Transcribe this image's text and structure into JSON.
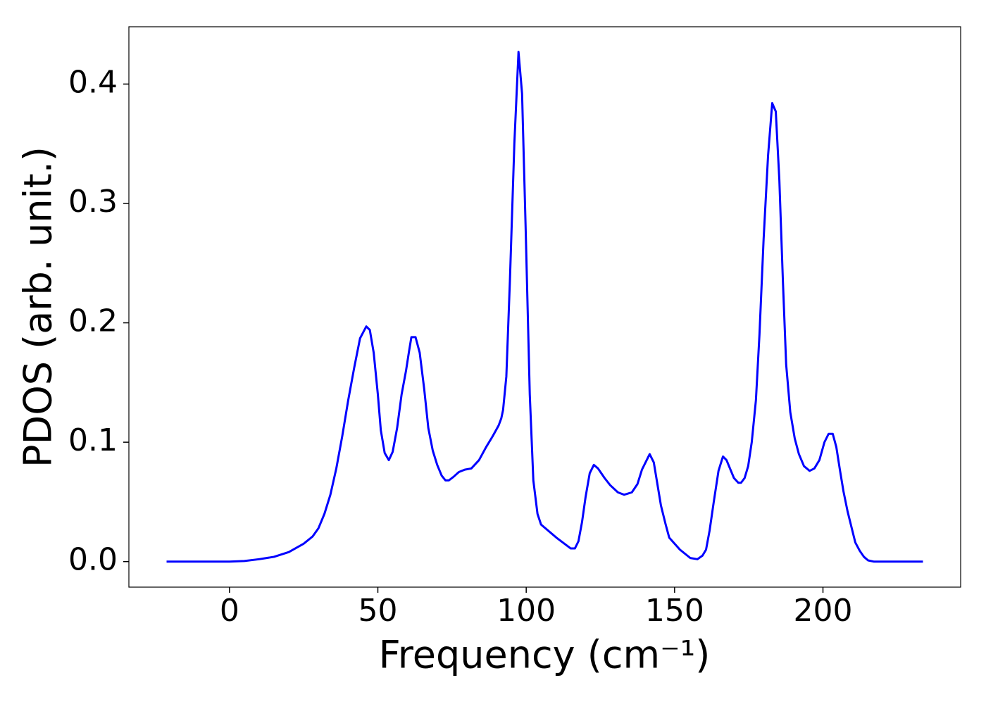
{
  "chart_data": {
    "type": "line",
    "x_label": "Frequency (cm⁻¹)",
    "y_label": "PDOS (arb. unit.)",
    "xlim": [
      -33.9,
      246.4
    ],
    "ylim": [
      -0.0214,
      0.448
    ],
    "xticks": [
      0,
      50,
      100,
      150,
      200
    ],
    "yticks": [
      {
        "value": 0,
        "label": "0.0"
      },
      0.1,
      0.2,
      0.3,
      0.4
    ],
    "grid": false,
    "series": [
      {
        "name": "PDOS",
        "color": "#0000ff",
        "x": [
          -21.2,
          -10,
          0,
          5,
          10,
          15,
          20,
          25,
          28,
          30,
          32,
          34,
          36,
          38,
          40,
          42,
          44,
          46.1,
          47.3,
          48.6,
          50,
          51,
          52.3,
          53.7,
          55,
          56.5,
          58,
          59.5,
          60.5,
          61.3,
          62.7,
          64.1,
          65.6,
          67,
          68.5,
          70,
          71.5,
          72.8,
          73.9,
          75.5,
          77.3,
          79.3,
          81.5,
          84.1,
          86.5,
          88.7,
          90.7,
          91.6,
          92.2,
          93.3,
          94.5,
          96,
          97.4,
          98.6,
          99.8,
          101.2,
          102.4,
          103.8,
          105,
          110.2,
          115,
          116.4,
          117.6,
          118.8,
          120,
          121.4,
          122.8,
          124.2,
          126.4,
          128.3,
          130.9,
          133,
          135.6,
          137.5,
          139,
          141.6,
          143,
          145.4,
          147,
          148.2,
          151.8,
          155.3,
          157.7,
          159.4,
          160.6,
          161.8,
          163.2,
          164.8,
          166.3,
          167.5,
          170,
          171.5,
          172.4,
          173.6,
          174.8,
          176,
          177.4,
          178.6,
          180,
          181.5,
          182.9,
          184.1,
          185.3,
          186.5,
          187.6,
          189,
          190.5,
          191.9,
          193.6,
          195.5,
          197.1,
          198.8,
          200.5,
          201.9,
          203.3,
          204.5,
          205.7,
          206.9,
          208.3,
          209.7,
          210.9,
          212.4,
          213.8,
          215.2,
          217.1,
          233.7
        ],
        "values": [
          0,
          0,
          0,
          0.0005,
          0.002,
          0.004,
          0.008,
          0.015,
          0.021,
          0.028,
          0.04,
          0.056,
          0.078,
          0.105,
          0.135,
          0.162,
          0.187,
          0.197,
          0.194,
          0.175,
          0.14,
          0.11,
          0.091,
          0.085,
          0.092,
          0.112,
          0.14,
          0.16,
          0.176,
          0.188,
          0.188,
          0.175,
          0.145,
          0.112,
          0.093,
          0.081,
          0.072,
          0.068,
          0.068,
          0.071,
          0.075,
          0.077,
          0.078,
          0.085,
          0.096,
          0.105,
          0.114,
          0.12,
          0.127,
          0.155,
          0.235,
          0.35,
          0.427,
          0.392,
          0.28,
          0.14,
          0.068,
          0.04,
          0.031,
          0.02,
          0.011,
          0.011,
          0.017,
          0.033,
          0.054,
          0.074,
          0.081,
          0.078,
          0.07,
          0.064,
          0.058,
          0.056,
          0.058,
          0.065,
          0.077,
          0.09,
          0.083,
          0.047,
          0.031,
          0.02,
          0.01,
          0.003,
          0.002,
          0.005,
          0.01,
          0.026,
          0.05,
          0.076,
          0.088,
          0.085,
          0.07,
          0.066,
          0.066,
          0.07,
          0.08,
          0.1,
          0.135,
          0.19,
          0.27,
          0.34,
          0.384,
          0.377,
          0.32,
          0.235,
          0.165,
          0.125,
          0.103,
          0.09,
          0.08,
          0.076,
          0.078,
          0.085,
          0.1,
          0.107,
          0.107,
          0.096,
          0.077,
          0.059,
          0.042,
          0.028,
          0.016,
          0.009,
          0.004,
          0.001,
          0,
          0
        ]
      }
    ]
  }
}
